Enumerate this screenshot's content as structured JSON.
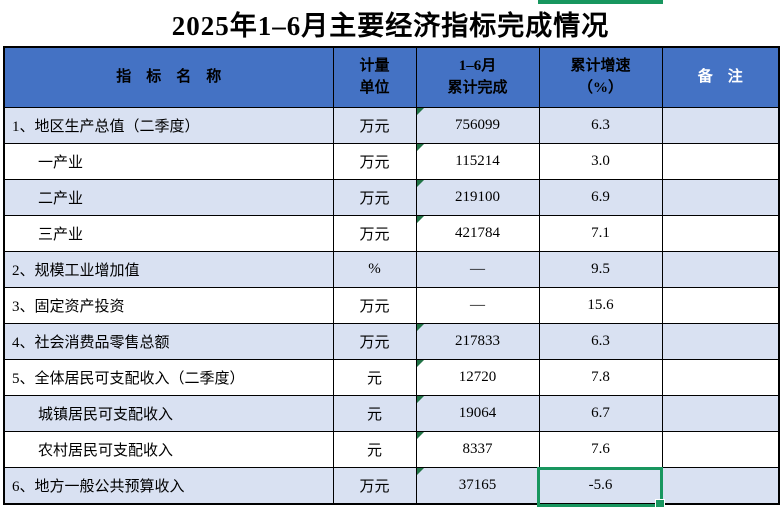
{
  "title": "2025年1–6月主要经济指标完成情况",
  "table": {
    "header": {
      "indicator": "指　标　名　称",
      "unit": "计量\n单位",
      "completed": "1–6月\n累计完成",
      "growth": "累计增速\n（%）",
      "note": "备　注"
    },
    "rows": [
      {
        "name": "1、地区生产总值（二季度）",
        "unit": "万元",
        "value": "756099",
        "growth": "6.3",
        "note": "",
        "indent": false,
        "flag": true,
        "selected": false
      },
      {
        "name": "一产业",
        "unit": "万元",
        "value": "115214",
        "growth": "3.0",
        "note": "",
        "indent": true,
        "flag": true,
        "selected": false
      },
      {
        "name": "二产业",
        "unit": "万元",
        "value": "219100",
        "growth": "6.9",
        "note": "",
        "indent": true,
        "flag": true,
        "selected": false
      },
      {
        "name": "三产业",
        "unit": "万元",
        "value": "421784",
        "growth": "7.1",
        "note": "",
        "indent": true,
        "flag": true,
        "selected": false
      },
      {
        "name": "2、规模工业增加值",
        "unit": "%",
        "value": "—",
        "growth": "9.5",
        "note": "",
        "indent": false,
        "flag": false,
        "selected": false
      },
      {
        "name": "3、固定资产投资",
        "unit": "万元",
        "value": "—",
        "growth": "15.6",
        "note": "",
        "indent": false,
        "flag": false,
        "selected": false
      },
      {
        "name": "4、社会消费品零售总额",
        "unit": "万元",
        "value": "217833",
        "growth": "6.3",
        "note": "",
        "indent": false,
        "flag": true,
        "selected": false
      },
      {
        "name": "5、全体居民可支配收入（二季度）",
        "unit": "元",
        "value": "12720",
        "growth": "7.8",
        "note": "",
        "indent": false,
        "flag": true,
        "selected": false
      },
      {
        "name": "城镇居民可支配收入",
        "unit": "元",
        "value": "19064",
        "growth": "6.7",
        "note": "",
        "indent": true,
        "flag": true,
        "selected": false
      },
      {
        "name": "农村居民可支配收入",
        "unit": "元",
        "value": "8337",
        "growth": "7.6",
        "note": "",
        "indent": true,
        "flag": true,
        "selected": false
      },
      {
        "name": "6、地方一般公共预算收入",
        "unit": "万元",
        "value": "37165",
        "growth": "-5.6",
        "note": "",
        "indent": false,
        "flag": true,
        "selected": true
      }
    ]
  },
  "selection": {
    "row_index": 10,
    "column": "growth",
    "value": "-5.6"
  },
  "colors": {
    "header_bg": "#4472C4",
    "stripe_bg": "#D9E1F2",
    "grid_border": "#000000",
    "selection_green": "#18965F",
    "flag_green": "#217346",
    "note_header_text": "#FFFFFF"
  }
}
